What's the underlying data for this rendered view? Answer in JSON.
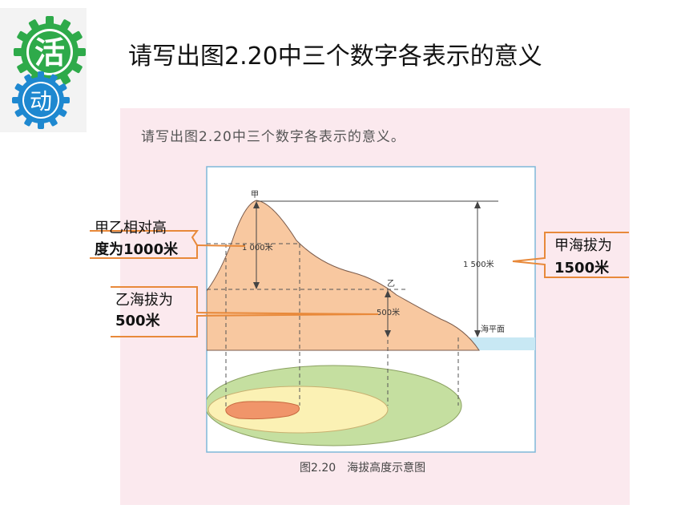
{
  "slide": {
    "title": "请写出图2.20中三个数字各表示的意义",
    "badge": {
      "top": "活",
      "bottom": "动"
    }
  },
  "figure": {
    "prompt": "请写出图2.20中三个数字各表示的意义。",
    "caption": "图2.20　海拔高度示意图",
    "labels": {
      "jia": "甲",
      "yi": "乙",
      "h1000": "1 000米",
      "h1500": "1 500米",
      "h500": "500米",
      "sea": "海平面"
    }
  },
  "annotations": {
    "relative": [
      "甲乙相对高",
      "度为1000米"
    ],
    "jia_alt": [
      "甲海拔为",
      "1500米"
    ],
    "yi_alt": [
      "乙海拔为",
      "500米"
    ]
  },
  "colors": {
    "accent_orange": "#e8893a",
    "gear_green": "#2eaa4a",
    "gear_blue": "#1e88d0",
    "figure_bg": "#fbe9ee",
    "mountain": "#f8c8a0",
    "sea": "#c8e8f4",
    "contour_green": "#c5dfa0",
    "contour_yellow": "#fbf1b4",
    "contour_orange": "#f0956a"
  }
}
